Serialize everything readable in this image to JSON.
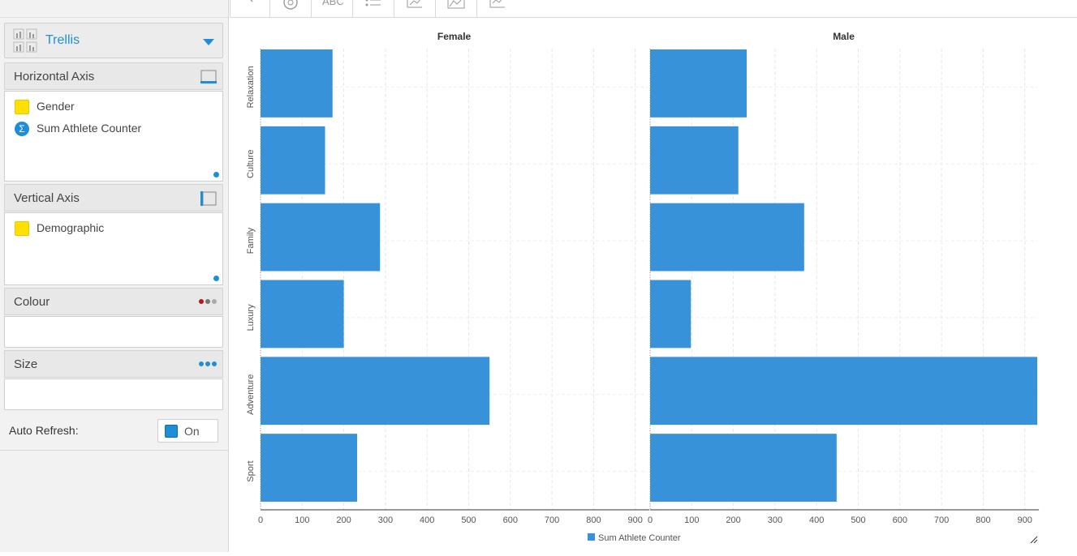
{
  "sidebar": {
    "chart_type": {
      "label": "Trellis"
    },
    "horizontal_axis": {
      "title": "Horizontal Axis",
      "fields": [
        {
          "name": "Gender",
          "kind": "dimension"
        },
        {
          "name": "Sum Athlete Counter",
          "kind": "measure"
        }
      ]
    },
    "vertical_axis": {
      "title": "Vertical Axis",
      "fields": [
        {
          "name": "Demographic",
          "kind": "dimension"
        }
      ]
    },
    "colour": {
      "title": "Colour"
    },
    "size": {
      "title": "Size"
    },
    "auto_refresh": {
      "label": "Auto Refresh:",
      "state": "On"
    }
  },
  "toolbar": {
    "icons": [
      "chevron-icon",
      "gear-icon",
      "text-abc-icon",
      "list-icon",
      "axis-chart-icon",
      "area-chart-icon",
      "line-chart-icon"
    ]
  },
  "colors": {
    "accent": "#1e8fd6",
    "bar": "#3792d9",
    "dimension_chip": "#ffe000"
  },
  "chart_data": {
    "type": "bar",
    "orientation": "horizontal",
    "categories": [
      "Relaxation",
      "Culture",
      "Family",
      "Luxury",
      "Adventure",
      "Sport"
    ],
    "panels": [
      {
        "title": "Female",
        "series": [
          {
            "name": "Sum Athlete Counter",
            "values": [
              173,
              155,
              287,
              200,
              550,
              232
            ]
          }
        ]
      },
      {
        "title": "Male",
        "series": [
          {
            "name": "Sum Athlete Counter",
            "values": [
              232,
              212,
              370,
              98,
              930,
              448
            ]
          }
        ]
      }
    ],
    "xlim": [
      0,
      930
    ],
    "xticks": [
      0,
      100,
      200,
      300,
      400,
      500,
      600,
      700,
      800,
      900
    ],
    "grid": true,
    "legend": {
      "position": "bottom",
      "entries": [
        "Sum Athlete Counter"
      ]
    }
  }
}
